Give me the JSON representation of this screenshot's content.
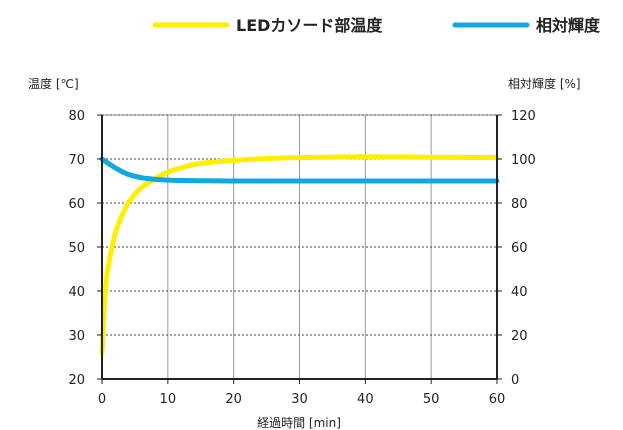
{
  "chart_data": {
    "type": "line",
    "legend_position": "top",
    "grid": true,
    "xlabel": "経過時間 [min]",
    "ylabel_left": "温度 [℃]",
    "ylabel_right": "相対輝度 [%]",
    "xlim": [
      0,
      60
    ],
    "ylim_left": [
      20,
      80
    ],
    "ylim_right": [
      0,
      120
    ],
    "x_ticks": [
      "0",
      "10",
      "20",
      "30",
      "40",
      "50",
      "60"
    ],
    "y_left_ticks": [
      "20",
      "30",
      "40",
      "50",
      "60",
      "70",
      "80"
    ],
    "y_right_ticks": [
      "0",
      "20",
      "40",
      "60",
      "80",
      "100",
      "120"
    ],
    "series": [
      {
        "name": "LEDカソード部温度",
        "axis": "left",
        "color": "#ffee00",
        "x": [
          0,
          0.5,
          1,
          2,
          3,
          4,
          5,
          6,
          8,
          10,
          12,
          15,
          20,
          25,
          30,
          40,
          50,
          60
        ],
        "y": [
          26,
          40,
          46,
          53,
          57,
          60,
          62,
          63.5,
          65.5,
          67,
          68,
          69,
          69.7,
          70.1,
          70.3,
          70.5,
          70.4,
          70.3
        ]
      },
      {
        "name": "相対輝度",
        "axis": "right",
        "color": "#11a7df",
        "x": [
          0,
          2,
          4,
          6,
          8,
          10,
          12,
          15,
          20,
          30,
          40,
          50,
          60
        ],
        "y": [
          100,
          96,
          93,
          91.5,
          90.8,
          90.4,
          90.2,
          90.1,
          90,
          90,
          90,
          90,
          90
        ]
      }
    ]
  }
}
